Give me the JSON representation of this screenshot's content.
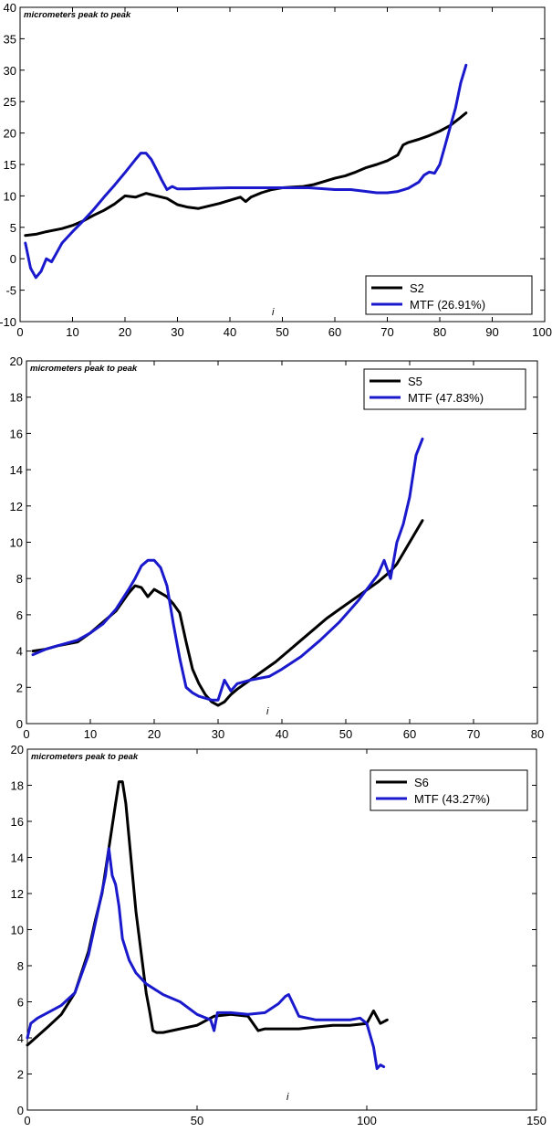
{
  "chart_data": [
    {
      "type": "line",
      "annotation": "micrometers peak to peak",
      "xlabel": "i",
      "ylabel": "",
      "xlim": [
        0,
        100
      ],
      "ylim": [
        -10,
        40
      ],
      "xticks": [
        0,
        10,
        20,
        30,
        40,
        50,
        60,
        70,
        80,
        90,
        100
      ],
      "yticks": [
        -10,
        -5,
        0,
        5,
        10,
        15,
        20,
        25,
        30,
        35,
        40
      ],
      "legend_position": "bottom-right",
      "series": [
        {
          "name": "S2",
          "color": "#000000",
          "x": [
            1,
            3,
            5,
            8,
            10,
            12,
            14,
            16,
            18,
            20,
            22,
            24,
            26,
            28,
            30,
            32,
            34,
            36,
            38,
            40,
            42,
            43,
            44,
            46,
            48,
            50,
            52,
            54,
            56,
            58,
            60,
            62,
            64,
            66,
            68,
            70,
            72,
            73,
            74,
            76,
            78,
            80,
            82,
            84,
            85
          ],
          "y": [
            3.7,
            3.9,
            4.3,
            4.8,
            5.3,
            6.0,
            6.9,
            7.7,
            8.7,
            10.0,
            9.8,
            10.4,
            10.0,
            9.6,
            8.6,
            8.2,
            8.0,
            8.4,
            8.8,
            9.3,
            9.8,
            9.1,
            9.8,
            10.5,
            11.0,
            11.3,
            11.4,
            11.5,
            11.8,
            12.3,
            12.8,
            13.2,
            13.8,
            14.5,
            15.0,
            15.6,
            16.5,
            18.1,
            18.5,
            19.0,
            19.6,
            20.3,
            21.2,
            22.5,
            23.2
          ]
        },
        {
          "name": "MTF (26.91%)",
          "color": "#1a1acc",
          "x": [
            1,
            2,
            3,
            4,
            5,
            6,
            7,
            8,
            10,
            12,
            14,
            16,
            18,
            20,
            22,
            23,
            24,
            25,
            26,
            27,
            28,
            29,
            30,
            32,
            35,
            40,
            45,
            50,
            55,
            60,
            63,
            65,
            68,
            70,
            72,
            74,
            76,
            77,
            78,
            79,
            80,
            81,
            82,
            83,
            84,
            85
          ],
          "y": [
            2.5,
            -1.5,
            -3.0,
            -2.0,
            0.0,
            -0.5,
            1.0,
            2.5,
            4.3,
            6.0,
            7.8,
            9.8,
            11.7,
            13.7,
            15.8,
            16.8,
            16.8,
            15.8,
            14.2,
            12.5,
            11.0,
            11.5,
            11.1,
            11.1,
            11.2,
            11.3,
            11.3,
            11.3,
            11.3,
            11.0,
            11.0,
            10.8,
            10.5,
            10.5,
            10.7,
            11.2,
            12.2,
            13.3,
            13.8,
            13.6,
            15.0,
            18.0,
            21.0,
            24.0,
            28.0,
            30.8
          ]
        }
      ]
    },
    {
      "type": "line",
      "annotation": "micrometers peak to peak",
      "xlabel": "i",
      "ylabel": "",
      "xlim": [
        0,
        80
      ],
      "ylim": [
        0,
        20
      ],
      "xticks": [
        0,
        10,
        20,
        30,
        40,
        50,
        60,
        70,
        80
      ],
      "yticks": [
        0,
        2,
        4,
        6,
        8,
        10,
        12,
        14,
        16,
        18,
        20
      ],
      "legend_position": "top-right",
      "series": [
        {
          "name": "S5",
          "color": "#000000",
          "x": [
            1,
            3,
            5,
            8,
            10,
            12,
            14,
            16,
            17,
            18,
            19,
            20,
            21,
            22,
            23,
            24,
            25,
            26,
            27,
            28,
            29,
            30,
            31,
            32,
            33,
            35,
            37,
            39,
            41,
            43,
            45,
            47,
            49,
            51,
            53,
            55,
            57,
            58,
            59,
            60,
            61,
            62
          ],
          "y": [
            4.0,
            4.1,
            4.3,
            4.5,
            5.0,
            5.6,
            6.2,
            7.2,
            7.6,
            7.5,
            7.0,
            7.4,
            7.2,
            7.0,
            6.6,
            6.1,
            4.5,
            3.0,
            2.2,
            1.6,
            1.2,
            1.0,
            1.2,
            1.6,
            1.9,
            2.4,
            2.9,
            3.4,
            4.0,
            4.6,
            5.2,
            5.8,
            6.3,
            6.8,
            7.3,
            7.8,
            8.4,
            8.8,
            9.4,
            10.0,
            10.6,
            11.2
          ]
        },
        {
          "name": "MTF (47.83%)",
          "color": "#1a1acc",
          "x": [
            1,
            3,
            5,
            8,
            10,
            12,
            14,
            16,
            17,
            18,
            19,
            20,
            21,
            22,
            23,
            24,
            25,
            26,
            27,
            28,
            29,
            30,
            31,
            32,
            33,
            35,
            38,
            40,
            43,
            46,
            49,
            52,
            55,
            56,
            57,
            58,
            59,
            60,
            61,
            62
          ],
          "y": [
            3.8,
            4.1,
            4.3,
            4.6,
            5.0,
            5.5,
            6.3,
            7.4,
            8.0,
            8.7,
            9.0,
            9.0,
            8.6,
            7.6,
            5.5,
            3.6,
            2.0,
            1.7,
            1.5,
            1.4,
            1.3,
            1.3,
            2.4,
            1.8,
            2.2,
            2.4,
            2.6,
            3.0,
            3.7,
            4.6,
            5.6,
            6.8,
            8.2,
            9.0,
            8.0,
            10.0,
            11.0,
            12.5,
            14.8,
            15.7
          ]
        }
      ]
    },
    {
      "type": "line",
      "annotation": "micrometers peak to peak",
      "xlabel": "i",
      "ylabel": "",
      "xlim": [
        0,
        150
      ],
      "ylim": [
        0,
        20
      ],
      "xticks": [
        0,
        50,
        100,
        150
      ],
      "yticks": [
        0,
        2,
        4,
        6,
        8,
        10,
        12,
        14,
        16,
        18,
        20
      ],
      "legend_position": "top-right",
      "series": [
        {
          "name": "S6",
          "color": "#000000",
          "x": [
            0,
            3,
            6,
            10,
            14,
            18,
            20,
            22,
            24,
            26,
            27,
            28,
            29,
            30,
            32,
            34,
            35,
            36,
            37,
            38,
            40,
            45,
            50,
            55,
            60,
            65,
            68,
            70,
            75,
            80,
            85,
            90,
            95,
            100,
            102,
            104,
            106
          ],
          "y": [
            3.6,
            4.1,
            4.6,
            5.3,
            6.5,
            8.8,
            10.5,
            12.0,
            14.5,
            17.0,
            18.2,
            18.2,
            17.0,
            15.0,
            11.0,
            8.0,
            6.5,
            5.5,
            4.4,
            4.3,
            4.3,
            4.5,
            4.7,
            5.2,
            5.3,
            5.2,
            4.4,
            4.5,
            4.5,
            4.5,
            4.6,
            4.7,
            4.7,
            4.8,
            5.5,
            4.8,
            5.0
          ]
        },
        {
          "name": "MTF (43.27%)",
          "color": "#1a1acc",
          "x": [
            0,
            1,
            3,
            6,
            10,
            14,
            18,
            21,
            23,
            24,
            25,
            26,
            27,
            28,
            30,
            32,
            35,
            40,
            45,
            50,
            54,
            55,
            56,
            60,
            65,
            70,
            74,
            76,
            77,
            78,
            80,
            85,
            90,
            95,
            98,
            100,
            102,
            103,
            104,
            105
          ],
          "y": [
            4.0,
            4.8,
            5.1,
            5.4,
            5.8,
            6.5,
            8.6,
            11.2,
            13.0,
            14.5,
            13.0,
            12.5,
            11.3,
            9.5,
            8.3,
            7.6,
            7.0,
            6.4,
            6.0,
            5.3,
            5.0,
            4.4,
            5.4,
            5.4,
            5.3,
            5.4,
            5.9,
            6.3,
            6.4,
            6.0,
            5.2,
            5.0,
            5.0,
            5.0,
            5.1,
            4.8,
            3.5,
            2.3,
            2.5,
            2.4
          ]
        }
      ]
    }
  ]
}
